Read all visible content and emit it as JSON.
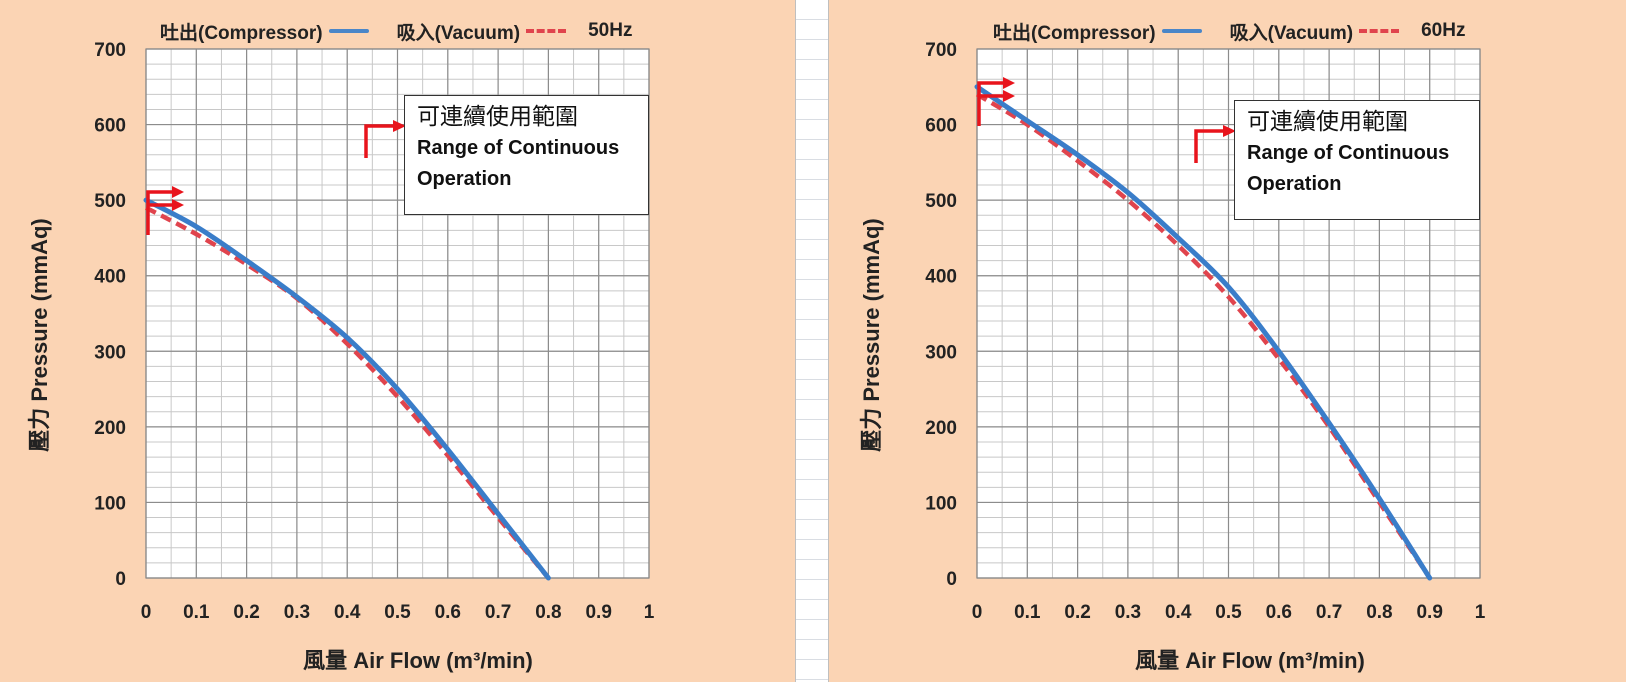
{
  "chart_data": [
    {
      "type": "line",
      "title": "",
      "frequency_label": "50Hz",
      "xlabel": "風量 Air Flow (m³/min)",
      "ylabel": "壓力 Pressure (mmAq)",
      "xlim": [
        0,
        1
      ],
      "ylim": [
        0,
        700
      ],
      "x_ticks": [
        "0",
        "0.1",
        "0.2",
        "0.3",
        "0.4",
        "0.5",
        "0.6",
        "0.7",
        "0.8",
        "0.9",
        "1"
      ],
      "y_ticks": [
        "0",
        "100",
        "200",
        "300",
        "400",
        "500",
        "600",
        "700"
      ],
      "grid": true,
      "legend_position": "top",
      "annotation": {
        "line1": "可連續使用範圍",
        "line2": "Range of Continuous",
        "line3": "Operation"
      },
      "series": [
        {
          "name": "吐出(Compressor)",
          "style": "solid",
          "color": "#3a7dc9",
          "x": [
            0,
            0.1,
            0.2,
            0.3,
            0.4,
            0.5,
            0.6,
            0.7,
            0.8
          ],
          "y": [
            500,
            465,
            420,
            372,
            318,
            250,
            170,
            85,
            0
          ]
        },
        {
          "name": "吸入(Vacuum)",
          "style": "dashed",
          "color": "#e0444d",
          "x": [
            0,
            0.1,
            0.2,
            0.3,
            0.4,
            0.5,
            0.6,
            0.7,
            0.8
          ],
          "y": [
            490,
            455,
            415,
            370,
            310,
            240,
            162,
            80,
            0
          ]
        }
      ]
    },
    {
      "type": "line",
      "title": "",
      "frequency_label": "60Hz",
      "xlabel": "風量 Air Flow (m³/min)",
      "ylabel": "壓力 Pressure (mmAq)",
      "xlim": [
        0,
        1
      ],
      "ylim": [
        0,
        700
      ],
      "x_ticks": [
        "0",
        "0.1",
        "0.2",
        "0.3",
        "0.4",
        "0.5",
        "0.6",
        "0.7",
        "0.8",
        "0.9",
        "1"
      ],
      "y_ticks": [
        "0",
        "100",
        "200",
        "300",
        "400",
        "500",
        "600",
        "700"
      ],
      "grid": true,
      "legend_position": "top",
      "annotation": {
        "line1": "可連續使用範圍",
        "line2": "Range of Continuous",
        "line3": "Operation"
      },
      "series": [
        {
          "name": "吐出(Compressor)",
          "style": "solid",
          "color": "#3a7dc9",
          "x": [
            0,
            0.1,
            0.2,
            0.3,
            0.4,
            0.5,
            0.6,
            0.7,
            0.8,
            0.9
          ],
          "y": [
            650,
            605,
            560,
            510,
            450,
            385,
            300,
            205,
            105,
            0
          ]
        },
        {
          "name": "吸入(Vacuum)",
          "style": "dashed",
          "color": "#e0444d",
          "x": [
            0,
            0.1,
            0.2,
            0.3,
            0.4,
            0.5,
            0.6,
            0.7,
            0.8,
            0.9
          ],
          "y": [
            640,
            600,
            552,
            500,
            440,
            372,
            290,
            200,
            100,
            0
          ]
        }
      ]
    }
  ]
}
